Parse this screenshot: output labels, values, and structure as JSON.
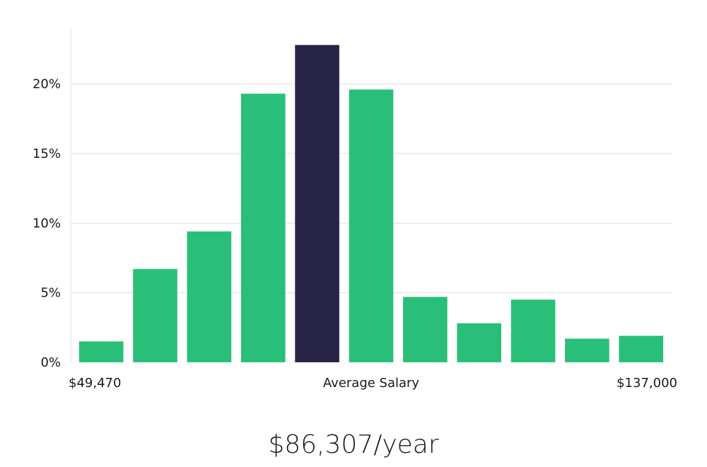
{
  "chart_data": {
    "type": "bar",
    "highlight_index": 4,
    "values": [
      1.5,
      6.7,
      9.4,
      19.3,
      22.8,
      19.6,
      4.7,
      2.8,
      4.5,
      1.7,
      1.9
    ],
    "ylim": [
      0,
      24
    ],
    "yticks": [
      0,
      5,
      10,
      15,
      20
    ],
    "ytick_labels": [
      "0%",
      "5%",
      "10%",
      "15%",
      "20%"
    ],
    "x_labels": {
      "left": "$49,470",
      "center": "Average Salary",
      "right": "$137,000"
    },
    "grid": true,
    "colors": {
      "bar": "#29bf78",
      "highlight": "#272447",
      "grid": "#dddddd",
      "axis": "#e2e2e2"
    }
  },
  "salary": "$86,307/year"
}
